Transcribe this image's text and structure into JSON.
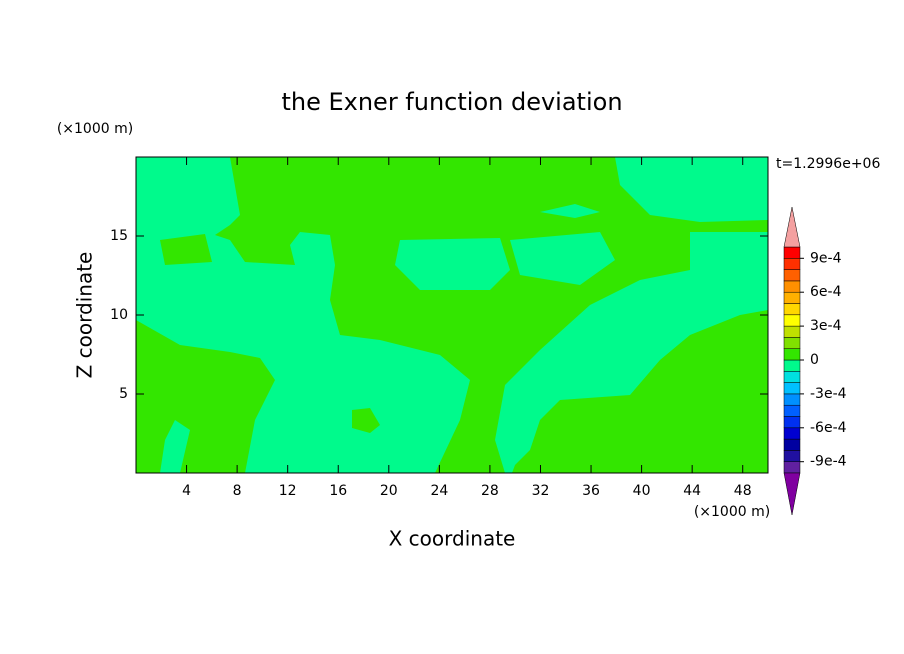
{
  "chart_data": {
    "type": "contour",
    "title": "the Exner function deviation",
    "x_label": "X coordinate",
    "y_label": "Z coordinate",
    "x_unit": "(×1000 m)",
    "y_unit": "(×1000 m)",
    "annotation": "t=1.2996e+06",
    "xlim": [
      0,
      50
    ],
    "xticks": [
      4,
      8,
      12,
      16,
      20,
      24,
      28,
      32,
      36,
      40,
      44,
      48
    ],
    "ylim": [
      0,
      20
    ],
    "yticks": [
      5,
      10,
      15
    ],
    "colorbar": {
      "clim": [
        -0.001,
        0.001
      ],
      "ticks": [
        {
          "value": 0.0009,
          "label": "9e-4"
        },
        {
          "value": 0.0006,
          "label": "6e-4"
        },
        {
          "value": 0.0003,
          "label": "3e-4"
        },
        0,
        {
          "value": -0.0003,
          "label": "-3e-4"
        },
        {
          "value": -0.0006,
          "label": "-6e-4"
        },
        {
          "value": -0.0009,
          "label": "-9e-4"
        }
      ],
      "colors": [
        "#6020a0",
        "#2010a0",
        "#0000a0",
        "#0000d0",
        "#0030f0",
        "#0060ff",
        "#0090ff",
        "#00c0ff",
        "#00e0e0",
        "#00fa8c",
        "#33e600",
        "#80e000",
        "#c0e000",
        "#ffff00",
        "#ffd700",
        "#ffb000",
        "#ff9000",
        "#ff6000",
        "#ff3000",
        "#ff0000"
      ],
      "over_color": "#f4a0a0",
      "under_color": "#8000a0"
    }
  }
}
